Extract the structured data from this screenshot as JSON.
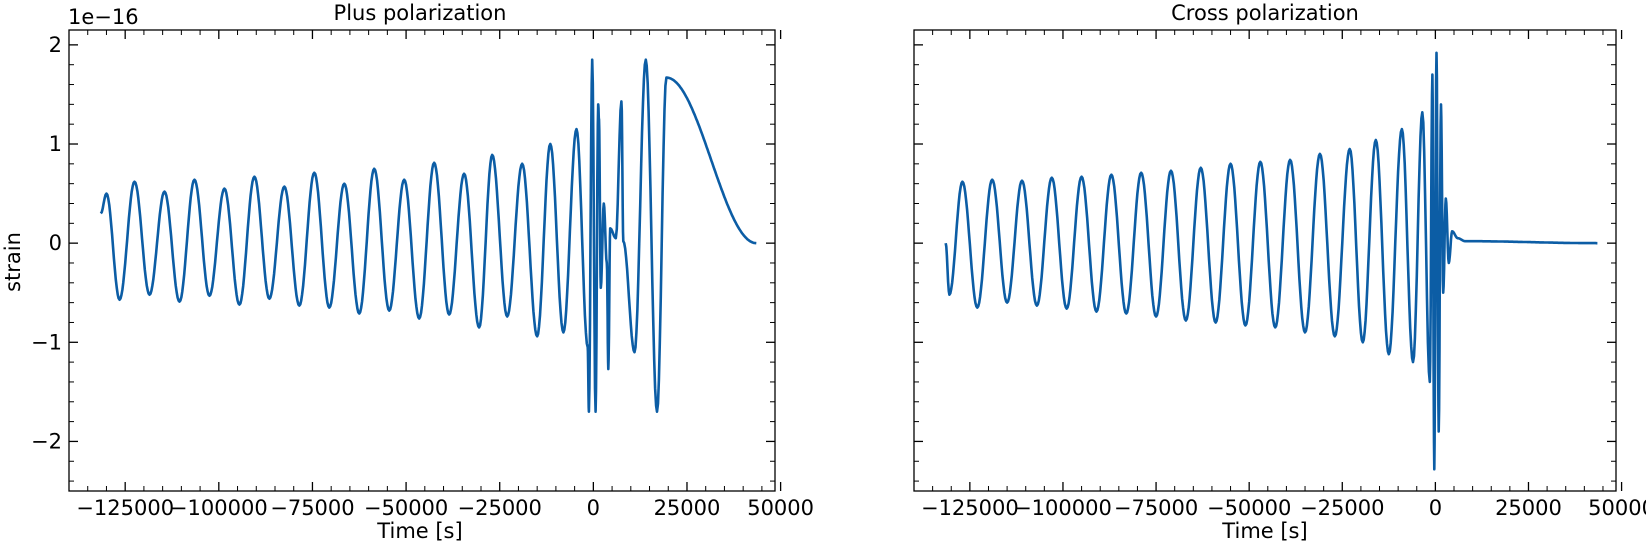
{
  "chart_data": [
    {
      "type": "line",
      "title": "Plus polarization",
      "xlabel": "Time [s]",
      "ylabel": "strain",
      "offset_text": "1e−16",
      "xlim": [
        -140000,
        48500
      ],
      "ylim": [
        -2.5,
        2.15
      ],
      "xticks": [
        -125000,
        -100000,
        -75000,
        -50000,
        -25000,
        0,
        25000,
        50000
      ],
      "xtick_labels": [
        "−125000",
        "−100000",
        "−75000",
        "−50000",
        "−25000",
        "0",
        "25000",
        "50000"
      ],
      "yticks": [
        -2,
        -1,
        0,
        1,
        2
      ],
      "ytick_labels": [
        "−2",
        "−1",
        "0",
        "1",
        "2"
      ],
      "grid": false,
      "series": [
        {
          "color": "#0c5da5",
          "t_start": -131500,
          "t_merger": 0,
          "t_end": 43500,
          "start_value": 0.3,
          "extrema": [
            [
              -130000,
              0.5
            ],
            [
              -126500,
              -0.57
            ],
            [
              -122500,
              0.62
            ],
            [
              -118500,
              -0.52
            ],
            [
              -114500,
              0.52
            ],
            [
              -110500,
              -0.59
            ],
            [
              -106500,
              0.64
            ],
            [
              -102500,
              -0.53
            ],
            [
              -98500,
              0.55
            ],
            [
              -94500,
              -0.62
            ],
            [
              -90500,
              0.67
            ],
            [
              -86500,
              -0.56
            ],
            [
              -82500,
              0.57
            ],
            [
              -78500,
              -0.63
            ],
            [
              -74500,
              0.71
            ],
            [
              -70500,
              -0.65
            ],
            [
              -66500,
              0.6
            ],
            [
              -62500,
              -0.71
            ],
            [
              -58500,
              0.75
            ],
            [
              -54500,
              -0.68
            ],
            [
              -50500,
              0.64
            ],
            [
              -46500,
              -0.76
            ],
            [
              -42500,
              0.81
            ],
            [
              -38500,
              -0.72
            ],
            [
              -34500,
              0.7
            ],
            [
              -30500,
              -0.85
            ],
            [
              -27000,
              0.89
            ],
            [
              -23000,
              -0.74
            ],
            [
              -19000,
              0.8
            ],
            [
              -15000,
              -0.94
            ],
            [
              -11500,
              1.0
            ],
            [
              -8000,
              -0.9
            ],
            [
              -4500,
              1.15
            ],
            [
              -1500,
              -1.05
            ],
            [
              1500,
              1.25
            ],
            [
              4000,
              -1.27
            ],
            [
              7500,
              1.43
            ],
            [
              11000,
              -1.1
            ],
            [
              14000,
              1.85
            ],
            [
              17000,
              -1.7
            ],
            [
              19500,
              1.67
            ]
          ],
          "ringdown": [
            [
              -1200,
              -1.7
            ],
            [
              -300,
              1.85
            ],
            [
              600,
              -1.7
            ],
            [
              1300,
              1.4
            ],
            [
              2000,
              -0.45
            ],
            [
              2800,
              0.4
            ],
            [
              3600,
              -0.2
            ],
            [
              4500,
              0.15
            ],
            [
              6000,
              0.05
            ],
            [
              8000,
              0.02
            ]
          ]
        }
      ]
    },
    {
      "type": "line",
      "title": "Cross polarization",
      "xlabel": "Time [s]",
      "ylabel": "",
      "offset_text": "",
      "xlim": [
        -140000,
        48500
      ],
      "ylim": [
        -2.5,
        2.15
      ],
      "xticks": [
        -125000,
        -100000,
        -75000,
        -50000,
        -25000,
        0,
        25000,
        50000
      ],
      "xtick_labels": [
        "−125000",
        "−100000",
        "−75000",
        "−50000",
        "−25000",
        "0",
        "25000",
        "50000"
      ],
      "yticks": [
        -2,
        -1,
        0,
        1,
        2
      ],
      "ytick_labels": [
        "",
        "",
        "",
        "",
        ""
      ],
      "grid": false,
      "series": [
        {
          "color": "#0c5da5",
          "t_start": -131500,
          "t_merger": 0,
          "t_end": 43500,
          "start_value": 0.0,
          "extrema": [
            [
              -130500,
              -0.52
            ],
            [
              -127000,
              0.62
            ],
            [
              -123000,
              -0.65
            ],
            [
              -119000,
              0.64
            ],
            [
              -115000,
              -0.6
            ],
            [
              -111000,
              0.63
            ],
            [
              -107000,
              -0.63
            ],
            [
              -103000,
              0.66
            ],
            [
              -99000,
              -0.66
            ],
            [
              -95000,
              0.67
            ],
            [
              -91000,
              -0.69
            ],
            [
              -87000,
              0.69
            ],
            [
              -83000,
              -0.71
            ],
            [
              -79000,
              0.71
            ],
            [
              -75000,
              -0.74
            ],
            [
              -71000,
              0.73
            ],
            [
              -67000,
              -0.78
            ],
            [
              -63000,
              0.76
            ],
            [
              -59000,
              -0.8
            ],
            [
              -55000,
              0.8
            ],
            [
              -51000,
              -0.83
            ],
            [
              -47000,
              0.82
            ],
            [
              -43000,
              -0.85
            ],
            [
              -39000,
              0.84
            ],
            [
              -35000,
              -0.9
            ],
            [
              -31000,
              0.9
            ],
            [
              -27000,
              -0.94
            ],
            [
              -23000,
              0.95
            ],
            [
              -19500,
              -1.0
            ],
            [
              -16000,
              1.04
            ],
            [
              -12500,
              -1.12
            ],
            [
              -9000,
              1.15
            ],
            [
              -6000,
              -1.2
            ],
            [
              -3500,
              1.32
            ],
            [
              -1500,
              -1.4
            ]
          ],
          "ringdown": [
            [
              -800,
              1.7
            ],
            [
              -300,
              -2.28
            ],
            [
              300,
              1.92
            ],
            [
              900,
              -1.9
            ],
            [
              1500,
              1.4
            ],
            [
              2100,
              -0.5
            ],
            [
              2800,
              0.45
            ],
            [
              3600,
              -0.2
            ],
            [
              4500,
              0.12
            ],
            [
              6000,
              0.05
            ],
            [
              8000,
              0.02
            ]
          ]
        }
      ]
    }
  ]
}
